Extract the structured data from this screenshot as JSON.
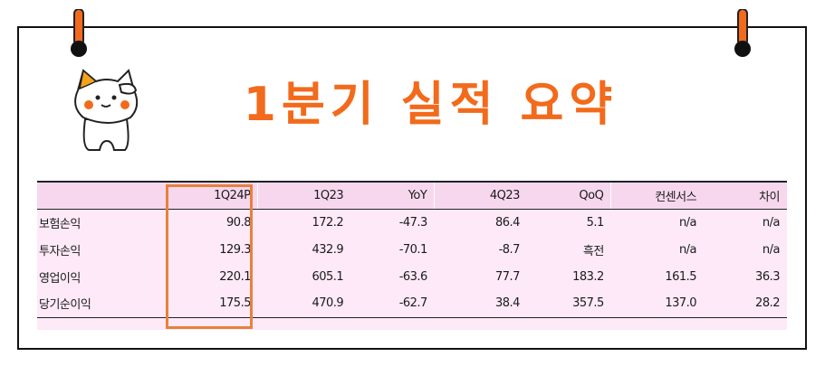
{
  "title": "1분기 실적 요약",
  "colors": {
    "title": "#f26a1b",
    "table_background": "#fde9f7",
    "highlight_border": "#e8813c"
  },
  "table": {
    "headers": [
      "",
      "1Q24P",
      "1Q23",
      "YoY",
      "4Q23",
      "QoQ",
      "컨센서스",
      "차이"
    ],
    "rows": [
      {
        "label": "보험손익",
        "values": [
          "90.8",
          "172.2",
          "-47.3",
          "86.4",
          "5.1",
          "n/a",
          "n/a"
        ]
      },
      {
        "label": "투자손익",
        "values": [
          "129.3",
          "432.9",
          "-70.1",
          "-8.7",
          "흑전",
          "n/a",
          "n/a"
        ]
      },
      {
        "label": "영업이익",
        "values": [
          "220.1",
          "605.1",
          "-63.6",
          "77.7",
          "183.2",
          "161.5",
          "36.3"
        ]
      },
      {
        "label": "당기순이익",
        "values": [
          "175.5",
          "470.9",
          "-62.7",
          "38.4",
          "357.5",
          "137.0",
          "28.2"
        ]
      }
    ],
    "highlighted_column": "1Q24P"
  },
  "icons": {
    "mascot": "cat-mascot-icon",
    "pin": "pushpin-icon"
  }
}
